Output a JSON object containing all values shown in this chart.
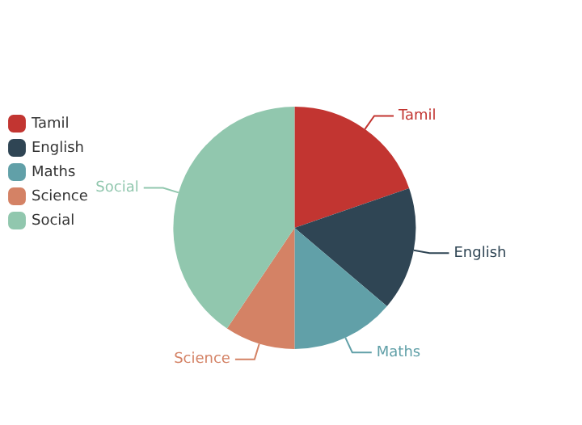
{
  "chart_data": {
    "type": "pie",
    "categories": [
      "Tamil",
      "English",
      "Maths",
      "Science",
      "Social"
    ],
    "values": [
      19.7,
      16.5,
      13.8,
      9.4,
      40.6
    ],
    "colors": [
      "#c23531",
      "#2f4554",
      "#61a0a8",
      "#d48265",
      "#91c7ae"
    ],
    "legend": "top left"
  }
}
